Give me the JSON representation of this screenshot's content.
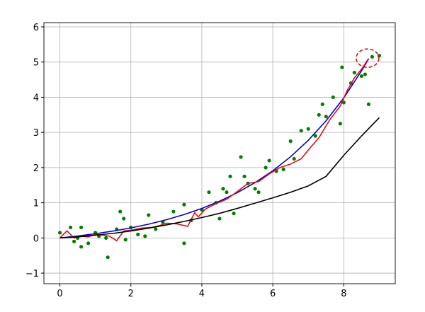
{
  "chart_data": {
    "type": "line",
    "xlim": [
      -0.45,
      9.45
    ],
    "ylim": [
      -1.3,
      6.12
    ],
    "xticks": [
      0,
      2,
      4,
      6,
      8
    ],
    "yticks": [
      {
        "value": -1,
        "label": "−1"
      },
      0,
      1,
      2,
      3,
      4,
      5,
      6
    ],
    "grid": true,
    "series": [
      {
        "kind": "scatter",
        "color": "#008000",
        "x": [
          0,
          0.3,
          0.4,
          0.5,
          0.6,
          0.6,
          0.8,
          1,
          1.1,
          1.3,
          1.35,
          1.6,
          1.7,
          1.8,
          1.85,
          2,
          2.2,
          2.4,
          2.5,
          2.7,
          2.9,
          3.2,
          3.5,
          3.5,
          3.7,
          4,
          4.2,
          4.4,
          4.5,
          4.6,
          4.7,
          4.8,
          4.9,
          5.1,
          5.2,
          5.3,
          5.5,
          5.6,
          5.8,
          5.9,
          6.1,
          6.3,
          6.5,
          6.6,
          6.8,
          7,
          7.2,
          7.3,
          7.4,
          7.5,
          7.7,
          7.9,
          7.95,
          8,
          8.2,
          8.3,
          8.5,
          8.6,
          8.7,
          8.8,
          9
        ],
        "values": [
          0.15,
          0.3,
          -0.1,
          0,
          -0.25,
          0.3,
          -0.15,
          0.15,
          0.05,
          0,
          -0.55,
          0.25,
          0.75,
          0.55,
          -0.05,
          0.3,
          0.1,
          0.05,
          0.65,
          0.25,
          0.45,
          0.75,
          -0.15,
          0.95,
          0.5,
          0.8,
          1.3,
          1,
          0.55,
          1.4,
          1.3,
          1.75,
          0.7,
          2.3,
          1.75,
          1.55,
          1.4,
          1.3,
          2,
          2.2,
          1.9,
          1.95,
          2.75,
          2.25,
          3.05,
          3.1,
          2.9,
          3.5,
          3.8,
          3.45,
          4,
          3.25,
          4.85,
          3.85,
          4.4,
          4.7,
          4.6,
          4.65,
          3.8,
          5.15,
          5.18
        ]
      },
      {
        "kind": "line",
        "color": "#0000cc",
        "x": [
          0,
          0.5,
          1,
          1.5,
          2,
          2.5,
          3,
          3.5,
          4,
          4.5,
          5,
          5.5,
          6,
          6.5,
          7,
          7.5,
          8,
          8.5,
          8.7
        ],
        "values": [
          0,
          0.055,
          0.12,
          0.196,
          0.286,
          0.392,
          0.517,
          0.666,
          0.84,
          1.045,
          1.287,
          1.573,
          1.91,
          2.308,
          2.776,
          3.33,
          3.98,
          4.75,
          5.09
        ]
      },
      {
        "kind": "line",
        "color": "#dd1111",
        "x": [
          0,
          0.2,
          0.4,
          0.6,
          0.8,
          1,
          1.2,
          1.4,
          1.6,
          1.8,
          2,
          2.3,
          2.6,
          2.8,
          3,
          3.3,
          3.6,
          3.8,
          3.9,
          4.1,
          4.4,
          4.7,
          5,
          5.3,
          5.6,
          5.9,
          6.2,
          6.5,
          6.8,
          7,
          7.3,
          7.6,
          7.9,
          8.1,
          8.3,
          8.5,
          8.7
        ],
        "values": [
          0,
          0.2,
          0,
          0.05,
          0.03,
          0.1,
          0.08,
          0.05,
          -0.08,
          0.2,
          0.22,
          0.28,
          0.3,
          0.35,
          0.42,
          0.4,
          0.33,
          0.72,
          0.6,
          0.82,
          0.98,
          1.1,
          1.32,
          1.55,
          1.6,
          1.82,
          2,
          2.1,
          2.25,
          2.5,
          2.85,
          3.35,
          3.75,
          4.2,
          4.55,
          4.8,
          5.1
        ]
      },
      {
        "kind": "line",
        "color": "#000000",
        "x": [
          0,
          0.5,
          1,
          1.5,
          2,
          2.5,
          3,
          3.5,
          4,
          4.5,
          5,
          5.5,
          6,
          6.5,
          7,
          7.5,
          8,
          8.5,
          9
        ],
        "values": [
          0,
          0.03,
          0.08,
          0.13,
          0.2,
          0.28,
          0.37,
          0.47,
          0.58,
          0.7,
          0.84,
          0.99,
          1.14,
          1.3,
          1.48,
          1.75,
          2.35,
          2.9,
          3.42
        ]
      }
    ],
    "highlight": {
      "x": 8.67,
      "y": 5.11,
      "color": "#dd1111"
    }
  }
}
